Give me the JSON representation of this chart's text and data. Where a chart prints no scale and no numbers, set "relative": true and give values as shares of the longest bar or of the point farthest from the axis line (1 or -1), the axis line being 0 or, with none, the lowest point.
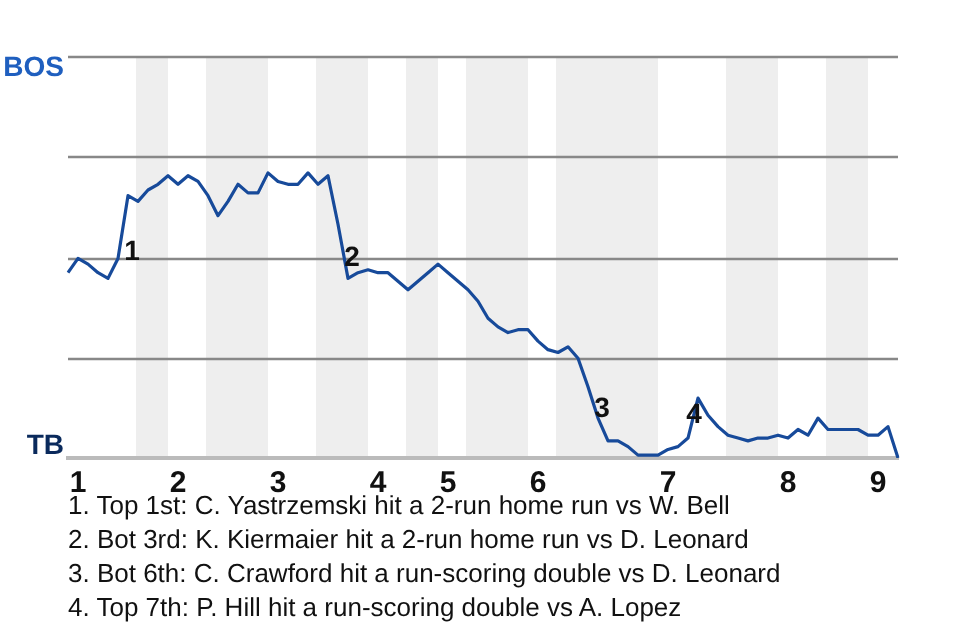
{
  "chart_data": {
    "type": "line",
    "relative": true,
    "categories": [
      null,
      "1",
      null,
      null,
      null,
      null,
      null,
      null,
      null,
      null,
      null,
      "2",
      null,
      null,
      null,
      null,
      null,
      null,
      null,
      null,
      null,
      "3",
      null,
      null,
      null,
      null,
      null,
      null,
      null,
      null,
      null,
      "4",
      null,
      null,
      null,
      null,
      null,
      null,
      "5",
      null,
      null,
      null,
      null,
      null,
      null,
      null,
      null,
      "6",
      null,
      null,
      null,
      null,
      null,
      null,
      null,
      null,
      null,
      null,
      null,
      null,
      "7",
      null,
      null,
      null,
      null,
      null,
      null,
      null,
      null,
      null,
      null,
      null,
      "8",
      null,
      null,
      null,
      null,
      null,
      null,
      null,
      null,
      "9",
      null,
      null
    ],
    "series": [
      {
        "color": "#174a9a",
        "values": [
          0.65,
          0.7,
          0.68,
          0.65,
          0.63,
          0.7,
          0.92,
          0.9,
          0.94,
          0.96,
          0.99,
          0.96,
          0.99,
          0.97,
          0.92,
          0.85,
          0.9,
          0.96,
          0.93,
          0.93,
          1,
          0.97,
          0.96,
          0.96,
          1,
          0.96,
          0.99,
          0.82,
          0.63,
          0.65,
          0.66,
          0.65,
          0.65,
          0.62,
          0.59,
          0.62,
          0.65,
          0.68,
          0.65,
          0.62,
          0.59,
          0.55,
          0.49,
          0.46,
          0.44,
          0.45,
          0.45,
          0.41,
          0.38,
          0.37,
          0.39,
          0.35,
          0.25,
          0.14,
          0.06,
          0.06,
          0.04,
          0.01,
          0.01,
          0.01,
          0.03,
          0.04,
          0.07,
          0.21,
          0.15,
          0.11,
          0.08,
          0.07,
          0.06,
          0.07,
          0.07,
          0.08,
          0.07,
          0.1,
          0.08,
          0.14,
          0.1,
          0.1,
          0.1,
          0.1,
          0.08,
          0.08,
          0.11,
          0
        ]
      }
    ],
    "ref_lines": [
      {
        "axis": "y",
        "value": 0.35,
        "color": "#888888"
      },
      {
        "axis": "y",
        "value": 0.7,
        "color": "#888888"
      },
      {
        "axis": "y",
        "value": 1.06,
        "color": "#888888"
      },
      {
        "axis": "y",
        "value": 1.41,
        "color": "#888888"
      }
    ],
    "legend": false,
    "marker": "none",
    "line_style": "solid",
    "annotations": [
      "BOS",
      "TB",
      "1",
      "2",
      "3",
      "4",
      "1. Top 1st: C. Yastrzemski hit a 2-run home run vs W. Bell",
      "2. Bot 3rd: K. Kiermaier hit a 2-run home run vs D. Leonard",
      "3. Bot 6th: C. Crawford hit a run-scoring double vs D. Leonard",
      "4. Top 7th: P. Hill hit a run-scoring double vs A. Lopez"
    ]
  }
}
